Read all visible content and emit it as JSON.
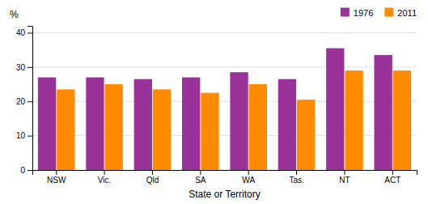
{
  "chart_data": {
    "type": "bar",
    "categories": [
      "NSW",
      "Vic.",
      "Qld",
      "SA",
      "WA",
      "Tas.",
      "NT",
      "ACT"
    ],
    "series": [
      {
        "name": "1976",
        "color": "#993399",
        "values": [
          27.0,
          27.0,
          26.5,
          27.0,
          28.5,
          26.5,
          35.5,
          33.5
        ]
      },
      {
        "name": "2011",
        "color": "#FF8C00",
        "values": [
          23.5,
          25.0,
          23.5,
          22.5,
          25.0,
          20.5,
          29.0,
          29.0
        ]
      }
    ],
    "xlabel": "State or Territory",
    "ylabel": "%",
    "ylim": [
      0,
      42
    ],
    "yticks": [
      0,
      10,
      20,
      30,
      40
    ],
    "grid": true,
    "legend": "upper right"
  }
}
